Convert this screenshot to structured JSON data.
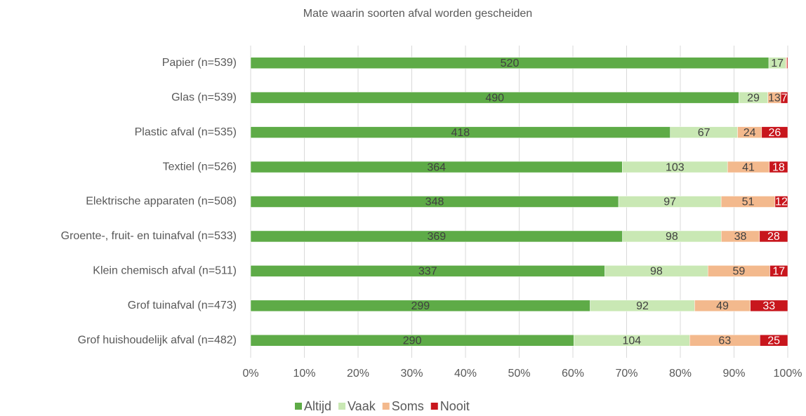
{
  "chart_data": {
    "type": "bar",
    "orientation": "horizontal",
    "stacking": "percent",
    "title": "Mate waarin soorten afval worden gescheiden",
    "categories": [
      "Papier (n=539)",
      "Glas (n=539)",
      "Plastic afval (n=535)",
      "Textiel (n=526)",
      "Elektrische apparaten (n=508)",
      "Groente-, fruit- en tuinafval (n=533)",
      "Klein chemisch afval (n=511)",
      "Grof tuinafval (n=473)",
      "Grof huishoudelijk afval (n=482)"
    ],
    "series": [
      {
        "name": "Altijd",
        "color": "#5eab47",
        "values": [
          520,
          490,
          418,
          364,
          348,
          369,
          337,
          299,
          290
        ]
      },
      {
        "name": "Vaak",
        "color": "#c9e8b4",
        "values": [
          17,
          29,
          67,
          103,
          97,
          98,
          98,
          92,
          104
        ]
      },
      {
        "name": "Soms",
        "color": "#f3b98d",
        "values": [
          1,
          13,
          24,
          41,
          51,
          38,
          59,
          49,
          63
        ],
        "value_labels": [
          null,
          "13",
          "24",
          "41",
          "51",
          "38",
          "59",
          "49",
          "63"
        ]
      },
      {
        "name": "Nooit",
        "color": "#c8161d",
        "values": [
          1,
          7,
          26,
          18,
          12,
          28,
          17,
          33,
          25
        ],
        "value_labels": [
          null,
          "7",
          "26",
          "18",
          "12",
          "28",
          "17",
          "33",
          "25"
        ]
      }
    ],
    "xlim": [
      0,
      100
    ],
    "xticks": [
      {
        "value": 0,
        "label": "0%"
      },
      {
        "value": 10,
        "label": "10%"
      },
      {
        "value": 20,
        "label": "20%"
      },
      {
        "value": 30,
        "label": "30%"
      },
      {
        "value": 40,
        "label": "40%"
      },
      {
        "value": 50,
        "label": "50%"
      },
      {
        "value": 60,
        "label": "60%"
      },
      {
        "value": 70,
        "label": "70%"
      },
      {
        "value": 80,
        "label": "80%"
      },
      {
        "value": 90,
        "label": "90%"
      },
      {
        "value": 100,
        "label": "100%"
      }
    ],
    "grid": true,
    "legend": "bottom"
  }
}
